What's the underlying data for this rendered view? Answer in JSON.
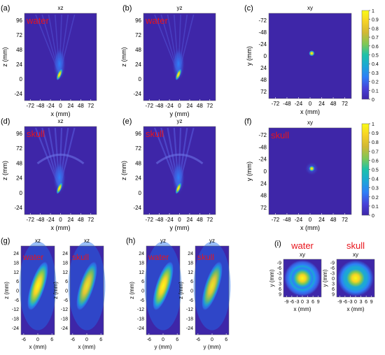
{
  "colors": {
    "background": "#3e26a8",
    "colormap": [
      "#3e26a8",
      "#4741d8",
      "#2e7ff7",
      "#1ca8d5",
      "#1cc2a9",
      "#7ec856",
      "#d1b834",
      "#f7d325",
      "#f9fb15"
    ],
    "label_red": "#e8141c"
  },
  "chart_data": [
    {
      "id": "a",
      "panel_label": "(a)",
      "type": "heatmap",
      "title": "xz",
      "medium": "water",
      "xlabel": "x (mm)",
      "ylabel": "z (mm)",
      "xticks": [
        "-72",
        "-48",
        "-24",
        "0",
        "24",
        "48",
        "72"
      ],
      "yticks": [
        "96",
        "72",
        "48",
        "24",
        "0",
        "-24"
      ]
    },
    {
      "id": "b",
      "panel_label": "(b)",
      "type": "heatmap",
      "title": "yz",
      "medium": "water",
      "xlabel": "y (mm)",
      "ylabel": "z (mm)",
      "xticks": [
        "-72",
        "-48",
        "-24",
        "0",
        "24",
        "48",
        "72"
      ],
      "yticks": [
        "96",
        "72",
        "48",
        "24",
        "0",
        "-24"
      ]
    },
    {
      "id": "c",
      "panel_label": "(c)",
      "type": "heatmap",
      "title": "xy",
      "medium": "",
      "xlabel": "x (mm)",
      "ylabel": "y (mm)",
      "xticks": [
        "-72",
        "-48",
        "-24",
        "0",
        "24",
        "48",
        "72"
      ],
      "yticks": [
        "-72",
        "-48",
        "-24",
        "0",
        "24",
        "48",
        "72"
      ],
      "colorbar": {
        "ticks": [
          "0",
          "0.1",
          "0.2",
          "0.3",
          "0.4",
          "0.5",
          "0.6",
          "0.7",
          "0.8",
          "0.9",
          "1"
        ],
        "range": [
          0,
          1
        ]
      }
    },
    {
      "id": "d",
      "panel_label": "(d)",
      "type": "heatmap",
      "title": "xz",
      "medium": "skull",
      "xlabel": "x (mm)",
      "ylabel": "z (mm)",
      "xticks": [
        "-72",
        "-48",
        "-24",
        "0",
        "24",
        "48",
        "72"
      ],
      "yticks": [
        "96",
        "72",
        "48",
        "24",
        "0",
        "-24"
      ]
    },
    {
      "id": "e",
      "panel_label": "(e)",
      "type": "heatmap",
      "title": "yz",
      "medium": "skull",
      "xlabel": "y (mm)",
      "ylabel": "z (mm)",
      "xticks": [
        "-72",
        "-48",
        "-24",
        "0",
        "24",
        "48",
        "72"
      ],
      "yticks": [
        "96",
        "72",
        "48",
        "24",
        "0",
        "-24"
      ]
    },
    {
      "id": "f",
      "panel_label": "(f)",
      "type": "heatmap",
      "title": "xy",
      "medium": "skull",
      "xlabel": "x (mm)",
      "ylabel": "y (mm)",
      "xticks": [
        "-72",
        "-48",
        "-24",
        "0",
        "24",
        "48",
        "72"
      ],
      "yticks": [
        "-72",
        "-48",
        "-24",
        "0",
        "24",
        "48",
        "72"
      ],
      "colorbar": {
        "ticks": [
          "0",
          "0.1",
          "0.2",
          "0.3",
          "0.4",
          "0.5",
          "0.6",
          "0.7",
          "0.8",
          "0.9",
          "1"
        ],
        "range": [
          0,
          1
        ]
      }
    },
    {
      "id": "g1",
      "panel_label": "(g)",
      "type": "heatmap",
      "title": "xz",
      "medium": "water",
      "xlabel": "x (mm)",
      "ylabel": "z (mm)",
      "xticks": [
        "-6",
        "0",
        "6"
      ],
      "yticks": [
        "24",
        "18",
        "12",
        "6",
        "0",
        "-6",
        "-12",
        "-18",
        "-24"
      ]
    },
    {
      "id": "g2",
      "panel_label": "",
      "type": "heatmap",
      "title": "xz",
      "medium": "skull",
      "xlabel": "x (mm)",
      "ylabel": "z (mm)",
      "xticks": [
        "-6",
        "0",
        "6"
      ],
      "yticks": [
        "24",
        "18",
        "12",
        "6",
        "0",
        "-6",
        "-12",
        "-18",
        "-24"
      ]
    },
    {
      "id": "h1",
      "panel_label": "(h)",
      "type": "heatmap",
      "title": "yz",
      "medium": "water",
      "xlabel": "y (mm)",
      "ylabel": "z (mm)",
      "xticks": [
        "-6",
        "0",
        "6"
      ],
      "yticks": [
        "24",
        "18",
        "12",
        "6",
        "0",
        "-6",
        "-12",
        "-18",
        "-24"
      ]
    },
    {
      "id": "h2",
      "panel_label": "",
      "type": "heatmap",
      "title": "yz",
      "medium": "skull",
      "xlabel": "y (mm)",
      "ylabel": "z (mm)",
      "xticks": [
        "-6",
        "0",
        "6"
      ],
      "yticks": [
        "24",
        "18",
        "12",
        "6",
        "0",
        "-6",
        "-12",
        "-18",
        "-24"
      ]
    },
    {
      "id": "i1",
      "panel_label": "(i)",
      "type": "heatmap",
      "title": "xy",
      "medium": "water",
      "xlabel": "x (mm)",
      "ylabel": "y (mm)",
      "xticks": [
        "-9",
        "-6",
        "-3",
        "0",
        "3",
        "6",
        "9"
      ],
      "yticks": [
        "-9",
        "-6",
        "-3",
        "0",
        "3",
        "6",
        "9"
      ]
    },
    {
      "id": "i2",
      "panel_label": "",
      "type": "heatmap",
      "title": "xy",
      "medium": "skull",
      "xlabel": "x (mm)",
      "ylabel": "y (mm)",
      "xticks": [
        "-9",
        "-6",
        "-3",
        "0",
        "3",
        "6",
        "9"
      ],
      "yticks": [
        "-9",
        "-6",
        "-3",
        "0",
        "3",
        "6",
        "9"
      ]
    }
  ]
}
